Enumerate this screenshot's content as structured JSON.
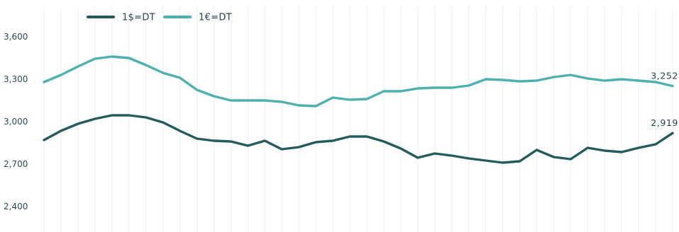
{
  "chart_data": {
    "type": "line",
    "title": "",
    "xlabel": "",
    "ylabel": "",
    "ylim": [
      2300,
      3700
    ],
    "y_ticks": [
      {
        "value": 2400,
        "label": "2,400"
      },
      {
        "value": 2700,
        "label": "2,700"
      },
      {
        "value": 3000,
        "label": "3,000"
      },
      {
        "value": 3300,
        "label": "3,300"
      },
      {
        "value": 3600,
        "label": "3,600"
      }
    ],
    "grid": {
      "horizontal": false,
      "vertical": true
    },
    "legend_position": "top-left",
    "series": [
      {
        "name": "1$=DT",
        "color": "#245c5e",
        "end_label": "2,919",
        "values": [
          2870,
          2935,
          2985,
          3020,
          3045,
          3045,
          3030,
          2995,
          2935,
          2880,
          2865,
          2860,
          2830,
          2865,
          2805,
          2820,
          2855,
          2865,
          2895,
          2895,
          2860,
          2810,
          2745,
          2775,
          2760,
          2740,
          2725,
          2710,
          2720,
          2800,
          2750,
          2735,
          2815,
          2795,
          2785,
          2815,
          2840,
          2919
        ]
      },
      {
        "name": "1€=DT",
        "color": "#4fb0b0",
        "end_label": "3,252",
        "values": [
          3280,
          3330,
          3390,
          3445,
          3460,
          3450,
          3400,
          3345,
          3310,
          3225,
          3180,
          3150,
          3150,
          3150,
          3140,
          3115,
          3110,
          3170,
          3155,
          3160,
          3215,
          3215,
          3235,
          3240,
          3240,
          3255,
          3300,
          3295,
          3285,
          3290,
          3315,
          3330,
          3305,
          3290,
          3300,
          3290,
          3280,
          3252
        ]
      }
    ]
  }
}
